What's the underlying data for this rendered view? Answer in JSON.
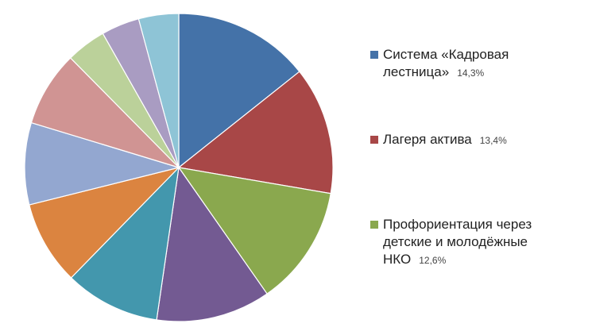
{
  "chart_data": {
    "type": "pie",
    "slices": [
      {
        "label": "Система «Кадровая лестница»",
        "value": 14.3,
        "color": "#4472A8"
      },
      {
        "label": "Лагеря актива",
        "value": 13.4,
        "color": "#A84747"
      },
      {
        "label": "Профориентация через детские и молодёжные НКО",
        "value": 12.6,
        "color": "#8AA84E"
      },
      {
        "label": "",
        "value": 12.0,
        "color": "#735A92"
      },
      {
        "label": "",
        "value": 10.0,
        "color": "#4397AD"
      },
      {
        "label": "",
        "value": 8.8,
        "color": "#DB8440"
      },
      {
        "label": "",
        "value": 8.6,
        "color": "#93A7D0"
      },
      {
        "label": "",
        "value": 7.9,
        "color": "#D09493"
      },
      {
        "label": "",
        "value": 4.2,
        "color": "#BBD19A"
      },
      {
        "label": "",
        "value": 4.0,
        "color": "#A99CC2"
      },
      {
        "label": "",
        "value": 4.2,
        "color": "#8EC4D6"
      }
    ],
    "legend": [
      {
        "lines": [
          "Система «Кадровая",
          "лестница»"
        ],
        "pct": "14,3%",
        "color": "#4472A8"
      },
      {
        "lines": [
          "Лагеря актива"
        ],
        "pct": "13,4%",
        "color": "#A84747"
      },
      {
        "lines": [
          "Профориентация через",
          "детские и молодёжные",
          "НКО"
        ],
        "pct": "12,6%",
        "color": "#8AA84E"
      }
    ],
    "legend_position": "right"
  }
}
